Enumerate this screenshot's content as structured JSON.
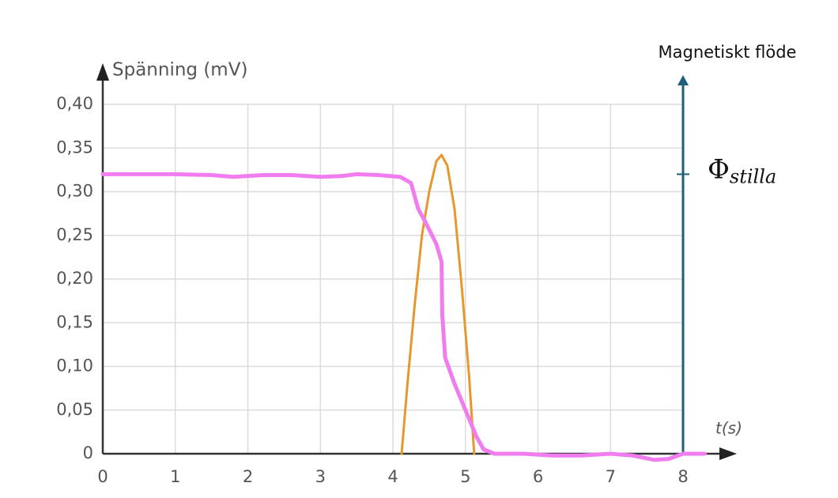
{
  "chart_data": {
    "type": "line",
    "y_label": "Spänning (mV)",
    "x_label": "t(s)",
    "xlim": [
      0,
      8
    ],
    "xticks": [
      0,
      1,
      2,
      3,
      4,
      5,
      6,
      7,
      8
    ],
    "ylim": [
      0,
      0.4
    ],
    "yticks": [
      0,
      {
        "value": 0.05,
        "label": "0,05"
      },
      {
        "value": 0.1,
        "label": "0,10"
      },
      {
        "value": 0.15,
        "label": "0,15"
      },
      {
        "value": 0.2,
        "label": "0,20"
      },
      {
        "value": 0.25,
        "label": "0,25"
      },
      {
        "value": 0.3,
        "label": "0,30"
      },
      {
        "value": 0.35,
        "label": "0,35"
      },
      {
        "value": 0.4,
        "label": "0,40"
      }
    ],
    "grid": true,
    "series": [
      {
        "color": "#e8962e",
        "width": 3,
        "x": [
          4.12,
          4.2,
          4.3,
          4.4,
          4.5,
          4.6,
          4.67,
          4.75,
          4.85,
          4.95,
          5.05,
          5.12
        ],
        "values": [
          0,
          0.08,
          0.17,
          0.25,
          0.3,
          0.335,
          0.342,
          0.33,
          0.28,
          0.19,
          0.09,
          0
        ]
      },
      {
        "color": "#f07cf0",
        "width": 5,
        "x": [
          0,
          0.5,
          1,
          1.5,
          1.8,
          2.2,
          2.6,
          3,
          3.3,
          3.5,
          3.8,
          4.1,
          4.25,
          4.35,
          4.45,
          4.6,
          4.67,
          4.68,
          4.72,
          4.85,
          5.0,
          5.15,
          5.25,
          5.4,
          5.8,
          6.2,
          6.6,
          7,
          7.3,
          7.6,
          7.8,
          8,
          8.3
        ],
        "values": [
          0.32,
          0.32,
          0.32,
          0.319,
          0.317,
          0.319,
          0.319,
          0.317,
          0.318,
          0.32,
          0.319,
          0.317,
          0.31,
          0.28,
          0.265,
          0.24,
          0.22,
          0.16,
          0.11,
          0.08,
          0.05,
          0.02,
          0.005,
          0,
          0,
          -0.002,
          -0.002,
          0,
          -0.002,
          -0.007,
          -0.006,
          0,
          0
        ]
      }
    ],
    "right_axis": {
      "label": "Magnetiskt flöde",
      "x": 8
    },
    "annotation": {
      "text": "Φ",
      "subscript": "stilla",
      "y": 0.32
    }
  }
}
